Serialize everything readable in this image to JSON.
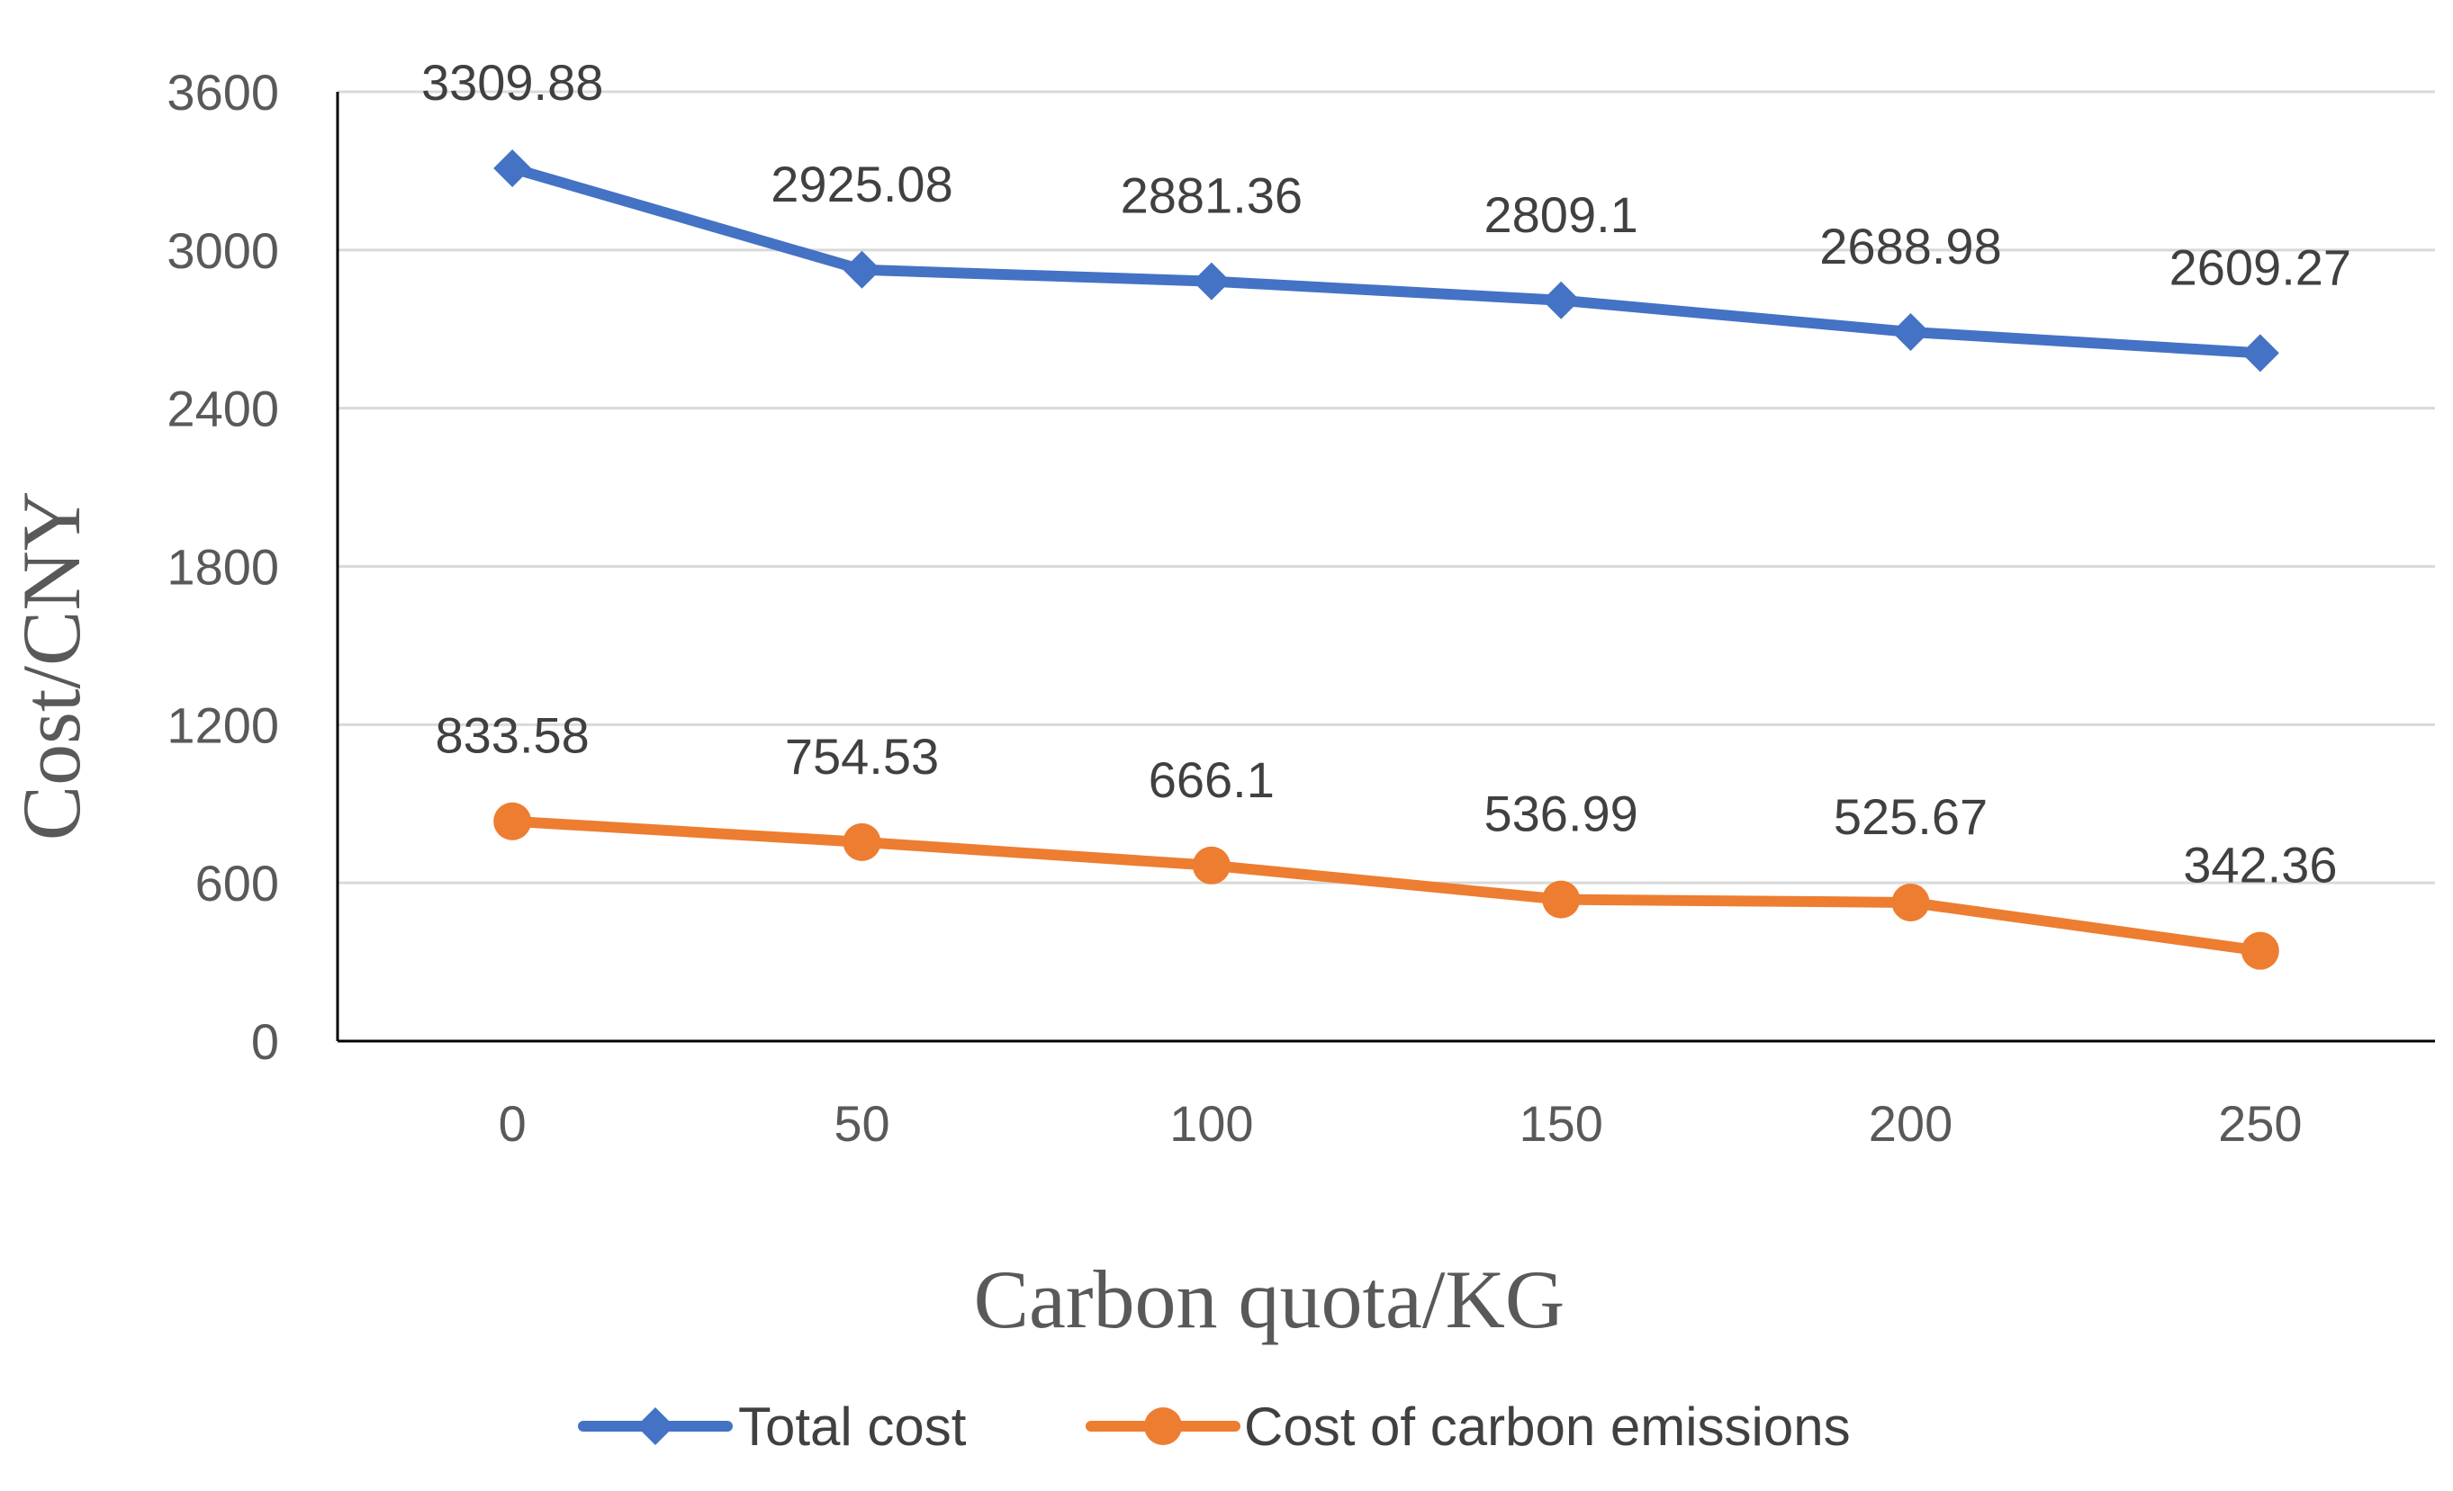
{
  "chart_data": {
    "type": "line",
    "title": "",
    "xlabel": "Carbon quota/KG",
    "ylabel": "Cost/CNY",
    "categories": [
      "0",
      "50",
      "100",
      "150",
      "200",
      "250"
    ],
    "yticks": [
      "0",
      "600",
      "1200",
      "1800",
      "2400",
      "3000",
      "3600"
    ],
    "ylim": [
      0,
      3600
    ],
    "grid": true,
    "legend_position": "bottom",
    "series": [
      {
        "name": "Total cost",
        "values": [
          3309.88,
          2925.08,
          2881.36,
          2809.1,
          2688.98,
          2609.27
        ],
        "labels": [
          "3309.88",
          "2925.08",
          "2881.36",
          "2809.1",
          "2688.98",
          "2609.27"
        ],
        "color": "#4472c4",
        "marker": "diamond"
      },
      {
        "name": "Cost of carbon emissions",
        "values": [
          833.58,
          754.53,
          666.1,
          536.99,
          525.67,
          342.36
        ],
        "labels": [
          "833.58",
          "754.53",
          "666.1",
          "536.99",
          "525.67",
          "342.36"
        ],
        "color": "#ed7d31",
        "marker": "circle"
      }
    ]
  }
}
